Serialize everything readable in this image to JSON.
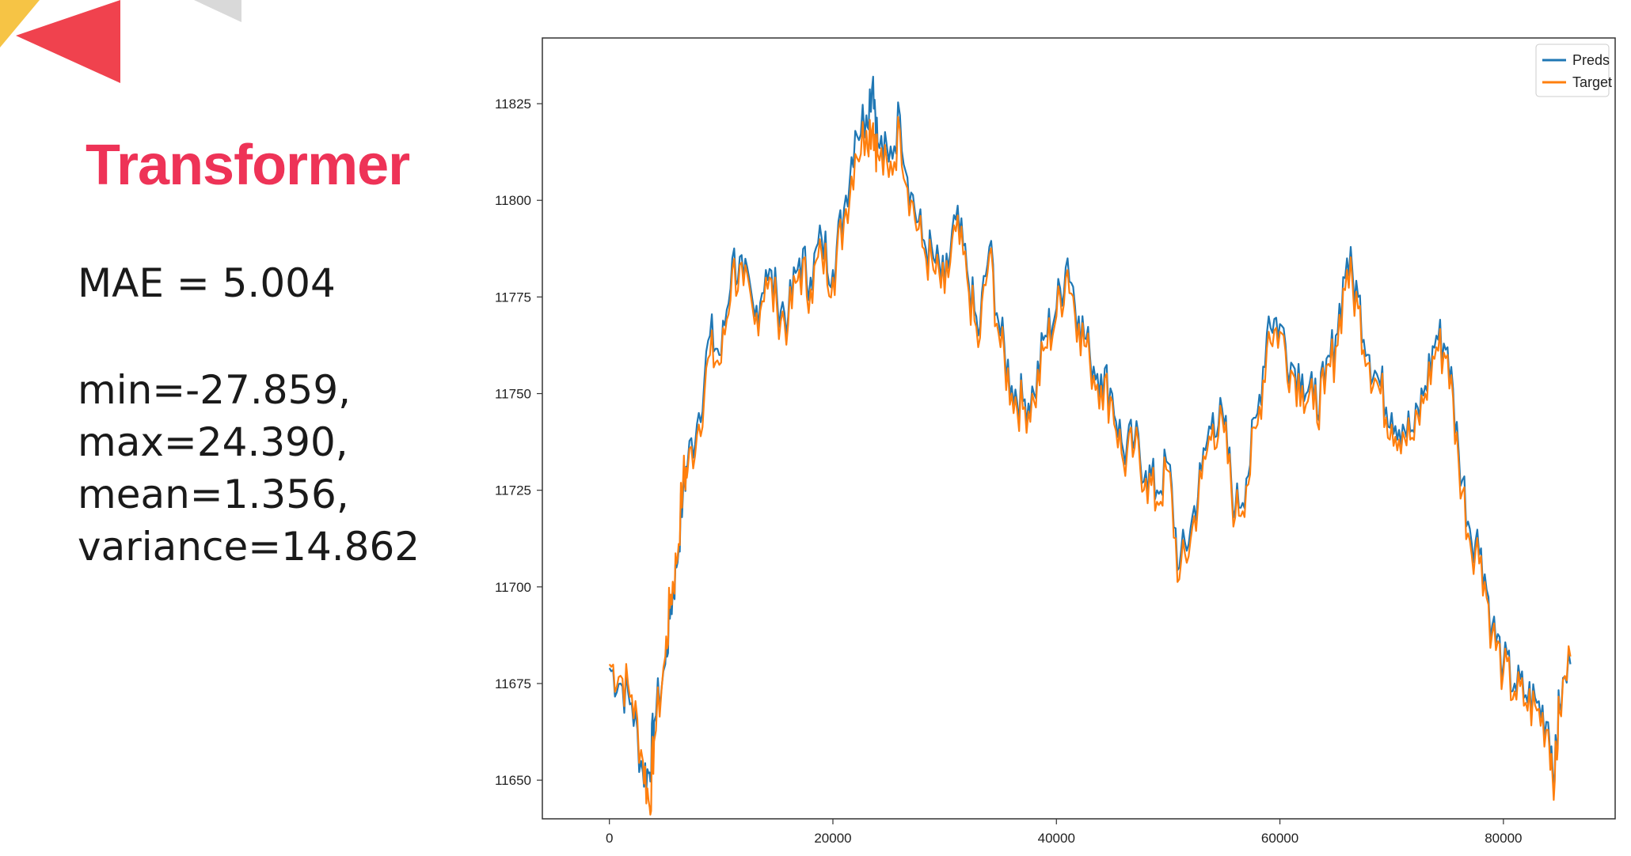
{
  "slide": {
    "title": "Transformer",
    "mae": "MAE = 5.004",
    "stats": [
      "min=-27.859,",
      "max=24.390,",
      "mean=1.356,",
      "variance=14.862"
    ],
    "colors": {
      "title": "#ee3357",
      "accent_red": "#f0424e",
      "accent_gray": "#d9d9d9",
      "accent_yellow": "#f6c445"
    }
  },
  "chart_data": {
    "type": "line",
    "xlim": [
      -6000,
      90000
    ],
    "ylim": [
      11640,
      11842
    ],
    "x_ticks": [
      0,
      20000,
      40000,
      60000,
      80000
    ],
    "y_ticks": [
      11650,
      11675,
      11700,
      11725,
      11750,
      11775,
      11800,
      11825
    ],
    "legend_position": "top-right",
    "grid": false,
    "series": [
      {
        "name": "Preds",
        "color": "#1f77b4",
        "x": [
          0,
          1000,
          2000,
          3000,
          3600,
          4000,
          5000,
          5500,
          6000,
          6600,
          7000,
          8000,
          9000,
          10000,
          11000,
          12000,
          13000,
          14000,
          15000,
          16000,
          17000,
          18000,
          19000,
          20000,
          21000,
          22000,
          23000,
          23600,
          24000,
          25000,
          26000,
          27000,
          28000,
          29000,
          30000,
          31000,
          32000,
          33000,
          34000,
          35000,
          36000,
          37000,
          38000,
          39000,
          40000,
          41000,
          42000,
          43000,
          44000,
          45000,
          46000,
          47000,
          48000,
          49000,
          50000,
          51000,
          52000,
          53000,
          54000,
          55000,
          56000,
          57000,
          58000,
          59000,
          60000,
          61000,
          62000,
          63000,
          64000,
          65000,
          66000,
          67000,
          68000,
          69000,
          70000,
          71000,
          72000,
          73000,
          74000,
          75000,
          76000,
          77000,
          78000,
          79000,
          80000,
          81000,
          82000,
          83000,
          84000,
          84600,
          85000,
          86000
        ],
        "values": [
          11679,
          11675,
          11670,
          11652,
          11652,
          11665,
          11680,
          11695,
          11705,
          11725,
          11732,
          11745,
          11765,
          11760,
          11785,
          11780,
          11770,
          11782,
          11775,
          11770,
          11785,
          11780,
          11790,
          11782,
          11798,
          11818,
          11822,
          11832,
          11815,
          11810,
          11822,
          11802,
          11790,
          11785,
          11778,
          11795,
          11782,
          11765,
          11788,
          11765,
          11752,
          11748,
          11750,
          11765,
          11772,
          11785,
          11770,
          11760,
          11755,
          11750,
          11735,
          11738,
          11730,
          11725,
          11732,
          11705,
          11715,
          11730,
          11745,
          11742,
          11720,
          11728,
          11745,
          11770,
          11768,
          11758,
          11755,
          11748,
          11752,
          11765,
          11785,
          11775,
          11760,
          11752,
          11745,
          11742,
          11740,
          11752,
          11765,
          11762,
          11735,
          11715,
          11710,
          11690,
          11680,
          11675,
          11672,
          11670,
          11665,
          11652,
          11670,
          11680
        ]
      },
      {
        "name": "Target",
        "color": "#ff7f0e",
        "x": [
          0,
          1000,
          2000,
          3000,
          3600,
          4000,
          5000,
          5500,
          6000,
          6600,
          7000,
          8000,
          9000,
          10000,
          11000,
          12000,
          13000,
          14000,
          15000,
          16000,
          17000,
          18000,
          19000,
          20000,
          21000,
          22000,
          23000,
          23600,
          24000,
          25000,
          26000,
          27000,
          28000,
          29000,
          30000,
          31000,
          32000,
          33000,
          34000,
          35000,
          36000,
          37000,
          38000,
          39000,
          40000,
          41000,
          42000,
          43000,
          44000,
          45000,
          46000,
          47000,
          48000,
          49000,
          50000,
          51000,
          52000,
          53000,
          54000,
          55000,
          56000,
          57000,
          58000,
          59000,
          60000,
          61000,
          62000,
          63000,
          64000,
          65000,
          66000,
          67000,
          68000,
          69000,
          70000,
          71000,
          72000,
          73000,
          74000,
          75000,
          76000,
          77000,
          78000,
          79000,
          80000,
          81000,
          82000,
          83000,
          84000,
          84600,
          85000,
          86000
        ],
        "values": [
          11680,
          11677,
          11672,
          11655,
          11643,
          11660,
          11682,
          11698,
          11706,
          11728,
          11730,
          11742,
          11760,
          11758,
          11782,
          11778,
          11768,
          11780,
          11772,
          11768,
          11782,
          11777,
          11786,
          11780,
          11795,
          11812,
          11818,
          11820,
          11812,
          11806,
          11818,
          11800,
          11788,
          11782,
          11776,
          11792,
          11780,
          11762,
          11786,
          11762,
          11750,
          11746,
          11748,
          11762,
          11770,
          11782,
          11768,
          11758,
          11752,
          11748,
          11732,
          11736,
          11728,
          11722,
          11730,
          11702,
          11712,
          11728,
          11742,
          11740,
          11718,
          11726,
          11742,
          11766,
          11766,
          11756,
          11752,
          11746,
          11750,
          11762,
          11782,
          11772,
          11758,
          11750,
          11742,
          11740,
          11738,
          11750,
          11762,
          11760,
          11732,
          11712,
          11708,
          11688,
          11678,
          11673,
          11670,
          11668,
          11663,
          11650,
          11668,
          11682
        ]
      }
    ]
  }
}
